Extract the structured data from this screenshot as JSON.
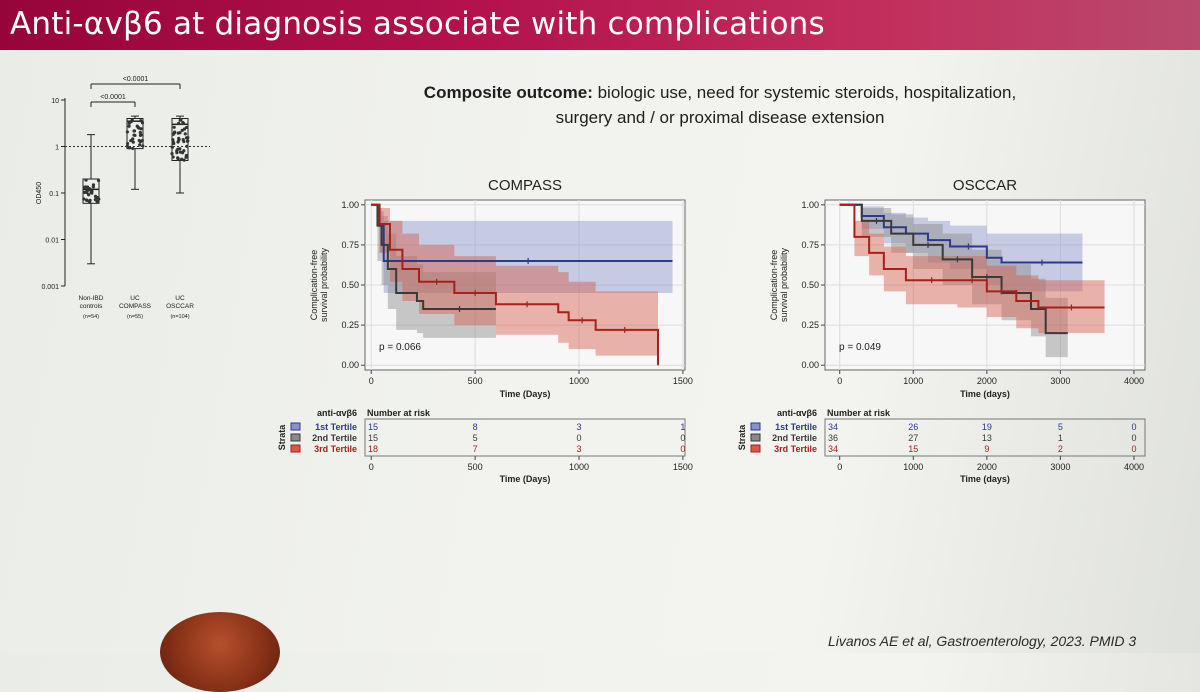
{
  "slide": {
    "title": "Anti-αvβ6 at diagnosis associate with complications",
    "outcome_bold": "Composite outcome:",
    "outcome_line1": " biologic use, need for systemic steroids, hospitalization,",
    "outcome_line2": "surgery and / or proximal disease extension",
    "citation": "Livanos AE et al, Gastroenterology, 2023. PMID 3"
  },
  "colors": {
    "tertile1": "#2c3a8c",
    "tertile2": "#3a3a3a",
    "tertile3": "#a8201a",
    "tertile1_band": "#8a93c8",
    "tertile2_band": "#8a8a8a",
    "tertile3_band": "#d45a4a"
  },
  "chart_data": [
    {
      "type": "scatter",
      "name": "boxplot",
      "ylabel": "OD450",
      "yscale": "log",
      "yticks": [
        {
          "value": 0.001,
          "label": "0.001"
        },
        {
          "value": 0.01,
          "label": "0.01"
        },
        {
          "value": 0.1,
          "label": "0.1"
        },
        {
          "value": 1,
          "label": "1"
        },
        {
          "value": 10,
          "label": "10"
        }
      ],
      "threshold": 1,
      "groups": [
        {
          "name1": "Non-IBD",
          "name2": "controls",
          "n": "(n=54)",
          "q1": 0.06,
          "median": 0.12,
          "q3": 0.2,
          "wlo": 0.003,
          "whi": 1.8
        },
        {
          "name1": "UC",
          "name2": "COMPASS",
          "n": "(n=55)",
          "q1": 0.9,
          "median": 3.5,
          "q3": 4.0,
          "wlo": 0.12,
          "whi": 4.5
        },
        {
          "name1": "UC",
          "name2": "OSCCAR",
          "n": "(n=104)",
          "q1": 0.5,
          "median": 3.0,
          "q3": 4.0,
          "wlo": 0.1,
          "whi": 4.5
        }
      ],
      "comparisons": [
        {
          "label": "<0.0001",
          "from": 0,
          "to": 1
        },
        {
          "label": "<0.0001",
          "from": 0,
          "to": 2
        }
      ]
    },
    {
      "type": "line",
      "name": "COMPASS",
      "title": "COMPASS",
      "xlabel": "Time (Days)",
      "ylabel_line1": "Complication-free",
      "ylabel_line2": "survival probability",
      "xlim": [
        -30,
        1510
      ],
      "ylim": [
        -0.03,
        1.03
      ],
      "xticks": [
        0,
        500,
        1000,
        1500
      ],
      "yticks": [
        {
          "value": 0,
          "label": "0.00"
        },
        {
          "value": 0.25,
          "label": "0.25"
        },
        {
          "value": 0.5,
          "label": "0.50"
        },
        {
          "value": 0.75,
          "label": "0.75"
        },
        {
          "value": 1,
          "label": "1.00"
        }
      ],
      "pvalue": "p = 0.066",
      "series": [
        {
          "name": "1st Tertile",
          "color": "#2c3a8c",
          "band": "#8a93c8",
          "x": [
            0,
            40,
            60,
            1450
          ],
          "y": [
            1.0,
            0.87,
            0.65,
            0.65
          ],
          "lower": [
            1.0,
            0.7,
            0.45,
            0.45
          ],
          "upper": [
            1.0,
            0.96,
            0.9,
            0.9
          ]
        },
        {
          "name": "2nd Tertile",
          "color": "#3a3a3a",
          "band": "#8a8a8a",
          "x": [
            0,
            30,
            50,
            80,
            120,
            220,
            250,
            600
          ],
          "y": [
            1.0,
            0.87,
            0.75,
            0.6,
            0.45,
            0.4,
            0.35,
            0.35
          ],
          "lower": [
            1.0,
            0.65,
            0.5,
            0.35,
            0.22,
            0.2,
            0.17,
            0.17
          ],
          "upper": [
            1.0,
            0.98,
            0.93,
            0.82,
            0.68,
            0.63,
            0.58,
            0.58
          ]
        },
        {
          "name": "3rd Tertile",
          "color": "#a8201a",
          "band": "#d45a4a",
          "x": [
            0,
            40,
            90,
            150,
            230,
            400,
            600,
            900,
            950,
            1080,
            1360,
            1380
          ],
          "y": [
            1.0,
            0.88,
            0.72,
            0.6,
            0.52,
            0.45,
            0.38,
            0.33,
            0.28,
            0.22,
            0.22,
            0.0
          ],
          "lower": [
            1.0,
            0.7,
            0.52,
            0.4,
            0.32,
            0.25,
            0.19,
            0.14,
            0.1,
            0.06,
            0.06,
            0.0
          ],
          "upper": [
            1.0,
            0.98,
            0.9,
            0.82,
            0.75,
            0.68,
            0.62,
            0.58,
            0.52,
            0.46,
            0.46,
            0.0
          ]
        }
      ],
      "risk": {
        "header": "anti-αvβ6",
        "header2": "Number at risk",
        "side_label": "Strata",
        "xticks": [
          0,
          500,
          1000,
          1500
        ],
        "columns": [
          0,
          500,
          1000,
          1500
        ],
        "rows": [
          {
            "name": "1st Tertile",
            "values": [
              "15",
              "8",
              "3",
              "1"
            ]
          },
          {
            "name": "2nd Tertile",
            "values": [
              "15",
              "5",
              "0",
              "0"
            ]
          },
          {
            "name": "3rd Tertile",
            "values": [
              "18",
              "7",
              "3",
              "0"
            ]
          }
        ]
      }
    },
    {
      "type": "line",
      "name": "OSCCAR",
      "title": "OSCCAR",
      "xlabel": "Time (days)",
      "ylabel_line1": "Complication-free",
      "ylabel_line2": "survival probability",
      "xlim": [
        -200,
        4150
      ],
      "ylim": [
        -0.03,
        1.03
      ],
      "xticks": [
        0,
        1000,
        2000,
        3000,
        4000
      ],
      "yticks": [
        {
          "value": 0,
          "label": "0.00"
        },
        {
          "value": 0.25,
          "label": "0.25"
        },
        {
          "value": 0.5,
          "label": "0.50"
        },
        {
          "value": 0.75,
          "label": "0.75"
        },
        {
          "value": 1,
          "label": "1.00"
        }
      ],
      "pvalue": "p = 0.049",
      "series": [
        {
          "name": "1st Tertile",
          "color": "#2c3a8c",
          "band": "#8a93c8",
          "x": [
            0,
            300,
            600,
            900,
            1200,
            1500,
            2000,
            2200,
            3300
          ],
          "y": [
            1.0,
            0.93,
            0.86,
            0.82,
            0.78,
            0.74,
            0.67,
            0.64,
            0.64
          ],
          "lower": [
            1.0,
            0.85,
            0.76,
            0.7,
            0.64,
            0.6,
            0.5,
            0.46,
            0.46
          ],
          "upper": [
            1.0,
            0.99,
            0.95,
            0.92,
            0.9,
            0.87,
            0.82,
            0.82,
            0.82
          ]
        },
        {
          "name": "2nd Tertile",
          "color": "#3a3a3a",
          "band": "#8a8a8a",
          "x": [
            0,
            300,
            700,
            1000,
            1400,
            1800,
            2200,
            2600,
            2800,
            3100
          ],
          "y": [
            1.0,
            0.9,
            0.82,
            0.75,
            0.66,
            0.55,
            0.45,
            0.35,
            0.2,
            0.2
          ],
          "lower": [
            1.0,
            0.8,
            0.7,
            0.6,
            0.5,
            0.38,
            0.28,
            0.18,
            0.05,
            0.05
          ],
          "upper": [
            1.0,
            0.98,
            0.94,
            0.88,
            0.82,
            0.72,
            0.63,
            0.54,
            0.42,
            0.42
          ]
        },
        {
          "name": "3rd Tertile",
          "color": "#a8201a",
          "band": "#d45a4a",
          "x": [
            0,
            200,
            400,
            600,
            900,
            1600,
            2000,
            2400,
            2700,
            3600
          ],
          "y": [
            1.0,
            0.8,
            0.7,
            0.6,
            0.53,
            0.53,
            0.46,
            0.4,
            0.36,
            0.36
          ],
          "lower": [
            1.0,
            0.68,
            0.56,
            0.46,
            0.38,
            0.36,
            0.3,
            0.23,
            0.2,
            0.2
          ],
          "upper": [
            1.0,
            0.9,
            0.82,
            0.74,
            0.68,
            0.68,
            0.62,
            0.56,
            0.53,
            0.53
          ]
        }
      ],
      "risk": {
        "header": "anti-αvβ6",
        "header2": "Number at risk",
        "side_label": "Strata",
        "xticks": [
          0,
          1000,
          2000,
          3000,
          4000
        ],
        "columns": [
          0,
          1000,
          2000,
          3000,
          4000
        ],
        "rows": [
          {
            "name": "1st Tertile",
            "values": [
              "34",
              "26",
              "19",
              "5",
              "0"
            ]
          },
          {
            "name": "2nd Tertile",
            "values": [
              "36",
              "27",
              "13",
              "1",
              "0"
            ]
          },
          {
            "name": "3rd Tertile",
            "values": [
              "34",
              "15",
              "9",
              "2",
              "0"
            ]
          }
        ]
      }
    }
  ]
}
